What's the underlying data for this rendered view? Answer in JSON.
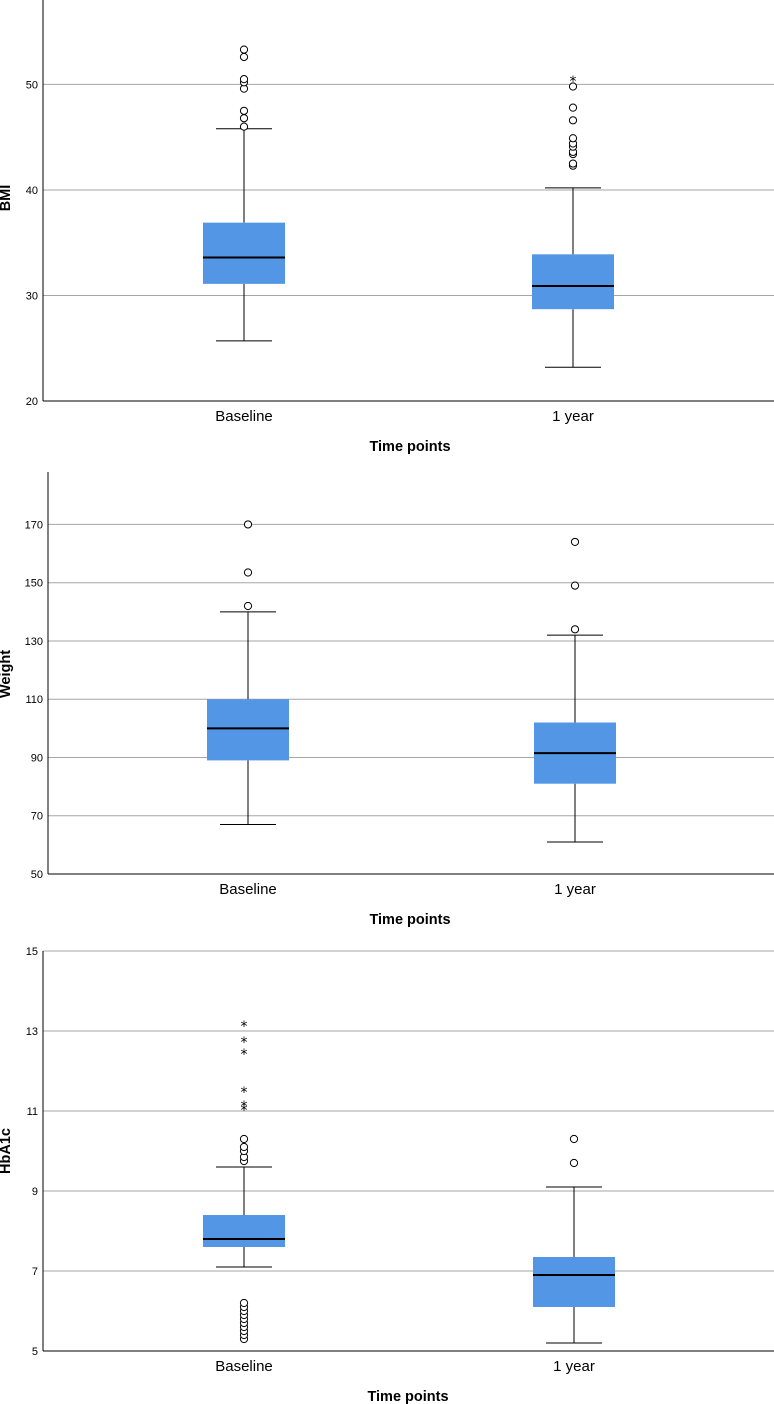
{
  "colors": {
    "box": "#5296E5",
    "grid": "#A6A6A6",
    "axis": "#000000"
  },
  "chart_data": [
    {
      "type": "box",
      "ylabel": "BMI",
      "xlabel": "Time points",
      "ylim": [
        20,
        58
      ],
      "yticks": [
        20,
        30,
        40,
        50
      ],
      "grid": true,
      "categories": [
        "Baseline",
        "1 year"
      ],
      "boxes": [
        {
          "category": "Baseline",
          "whisker_low": 25.7,
          "q1": 31.1,
          "median": 33.6,
          "q3": 36.9,
          "whisker_high": 45.8,
          "outliers": [
            46.0,
            46.8,
            47.5,
            49.6,
            50.2,
            50.5,
            52.6,
            53.3
          ],
          "extremes": []
        },
        {
          "category": "1 year",
          "whisker_low": 23.2,
          "q1": 28.7,
          "median": 30.9,
          "q3": 33.9,
          "whisker_high": 40.2,
          "outliers": [
            42.3,
            42.5,
            43.4,
            43.6,
            44.1,
            44.4,
            44.9,
            46.6,
            47.8,
            49.8
          ],
          "extremes": [
            50.6
          ]
        }
      ]
    },
    {
      "type": "box",
      "ylabel": "Weight",
      "xlabel": "Time points",
      "ylim": [
        50,
        188
      ],
      "yticks": [
        50,
        70,
        90,
        110,
        130,
        150,
        170
      ],
      "grid": true,
      "categories": [
        "Baseline",
        "1 year"
      ],
      "boxes": [
        {
          "category": "Baseline",
          "whisker_low": 67,
          "q1": 89,
          "median": 100,
          "q3": 110,
          "whisker_high": 140,
          "outliers": [
            142,
            153.5,
            170
          ],
          "extremes": []
        },
        {
          "category": "1 year",
          "whisker_low": 61,
          "q1": 81,
          "median": 91.5,
          "q3": 102,
          "whisker_high": 132,
          "outliers": [
            134,
            149,
            164
          ],
          "extremes": []
        }
      ]
    },
    {
      "type": "box",
      "ylabel": "HbA1c",
      "xlabel": "Time points",
      "ylim": [
        5,
        15
      ],
      "yticks": [
        5,
        7,
        9,
        11,
        13,
        15
      ],
      "grid": true,
      "categories": [
        "Baseline",
        "1 year"
      ],
      "boxes": [
        {
          "category": "Baseline",
          "whisker_low": 7.1,
          "q1": 7.6,
          "median": 7.8,
          "q3": 8.4,
          "whisker_high": 9.6,
          "outliers": [
            5.3,
            5.4,
            5.5,
            5.6,
            5.7,
            5.8,
            5.9,
            6.0,
            6.1,
            6.2,
            9.75,
            9.85,
            10.0,
            10.1,
            10.3
          ],
          "extremes": [
            11.1,
            11.2,
            11.55,
            12.5,
            12.8,
            13.2
          ]
        },
        {
          "category": "1 year",
          "whisker_low": 5.2,
          "q1": 6.1,
          "median": 6.9,
          "q3": 7.35,
          "whisker_high": 9.1,
          "outliers": [
            9.7,
            10.3
          ],
          "extremes": []
        }
      ]
    }
  ]
}
